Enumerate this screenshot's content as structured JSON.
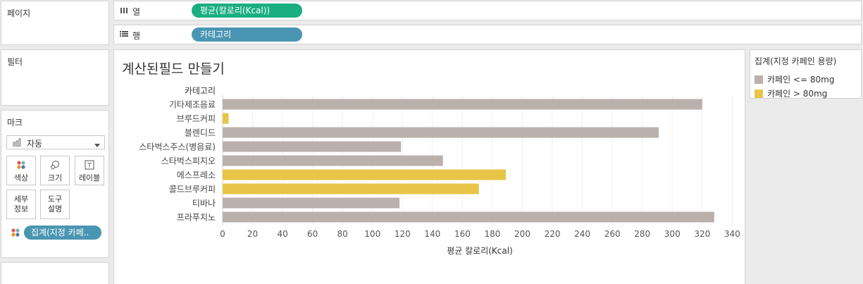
{
  "pages_panel": {
    "title": "페이지"
  },
  "columns_shelf": {
    "label": "열",
    "pill": "평균(칼로리(Kcal))",
    "pill_color": "#1bae80"
  },
  "rows_shelf": {
    "label": "행",
    "pill": "카테고리",
    "pill_color": "#4a96b2"
  },
  "filters_panel": {
    "title": "필터"
  },
  "marks_panel": {
    "title": "마크",
    "mark_type": "자동",
    "buttons": [
      {
        "label": "색상",
        "icon": "color-icon"
      },
      {
        "label": "크기",
        "icon": "size-icon"
      },
      {
        "label": "레이블",
        "icon": "label-icon"
      },
      {
        "label": "세부\n정보",
        "line1": "세부",
        "line2": "정보",
        "icon": "detail-icon"
      },
      {
        "label": "도구\n설명",
        "line1": "도구",
        "line2": "설명",
        "icon": "tooltip-icon"
      }
    ],
    "color_pill": "집계(지정 카페..",
    "color_pill_color": "#4a96b2"
  },
  "legend": {
    "title": "집계(지정 카페인 용량)",
    "items": [
      {
        "label": "카페인 <= 80mg",
        "color": "#bab0ac"
      },
      {
        "label": "카페인 > 80mg",
        "color": "#e8c547"
      }
    ]
  },
  "chart_data": {
    "type": "bar",
    "orientation": "horizontal",
    "title": "계산된필드 만들기",
    "row_header": "카테고리",
    "xlabel": "평균 칼로리(Kcal)",
    "xlim": [
      0,
      345
    ],
    "xticks": [
      0,
      20,
      40,
      60,
      80,
      100,
      120,
      140,
      160,
      180,
      200,
      220,
      240,
      260,
      280,
      300,
      320,
      340
    ],
    "grid": true,
    "categories": [
      "기타제조음료",
      "브루드커피",
      "블렌디드",
      "스타벅스주스(병음료)",
      "스타벅스피지오",
      "에스프레소",
      "콜드브루커피",
      "티바나",
      "프라푸치노"
    ],
    "values": [
      320,
      4,
      291,
      119,
      147,
      189,
      171,
      118,
      328
    ],
    "color_groups": [
      "카페인 <= 80mg",
      "카페인 > 80mg",
      "카페인 <= 80mg",
      "카페인 <= 80mg",
      "카페인 <= 80mg",
      "카페인 > 80mg",
      "카페인 > 80mg",
      "카페인 <= 80mg",
      "카페인 <= 80mg"
    ],
    "colors": {
      "카페인 <= 80mg": "#bab0ac",
      "카페인 > 80mg": "#e8c547"
    }
  }
}
